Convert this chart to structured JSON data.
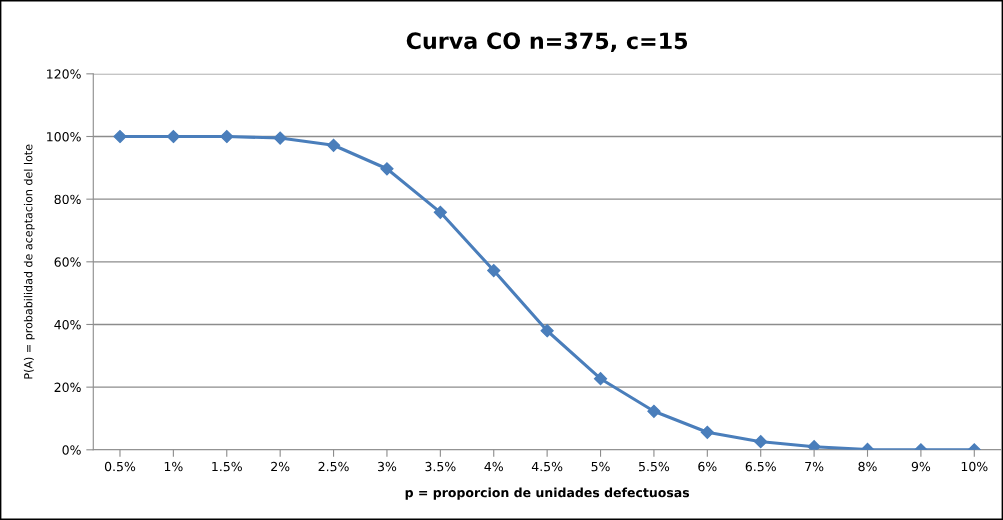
{
  "chart_data": {
    "type": "line",
    "title": "Curva CO n=375, c=15",
    "xlabel": "p = proporcion de unidades defectuosas",
    "ylabel": "P(A) = probabilidad de aceptacion del lote",
    "categories": [
      "0.5%",
      "1%",
      "1.5%",
      "2%",
      "2.5%",
      "3%",
      "3.5%",
      "4%",
      "4.5%",
      "5%",
      "5.5%",
      "6%",
      "6.5%",
      "7%",
      "8%",
      "9%",
      "10%"
    ],
    "series": [
      {
        "color": "#4a7ebb",
        "values": [
          100,
          100,
          100,
          99.5,
          97.2,
          89.7,
          75.8,
          57.2,
          38.0,
          22.7,
          12.3,
          5.6,
          2.6,
          1.0,
          0.1,
          0,
          0
        ]
      }
    ],
    "ylim": [
      0,
      120
    ],
    "yticks": [
      {
        "value": 0,
        "label": "0%"
      },
      {
        "value": 20,
        "label": "20%"
      },
      {
        "value": 40,
        "label": "40%"
      },
      {
        "value": 60,
        "label": "60%"
      },
      {
        "value": 80,
        "label": "80%"
      },
      {
        "value": 100,
        "label": "100%"
      },
      {
        "value": 120,
        "label": "120%"
      }
    ],
    "grid": "y",
    "marker": "diamond",
    "line_style": "solid"
  }
}
